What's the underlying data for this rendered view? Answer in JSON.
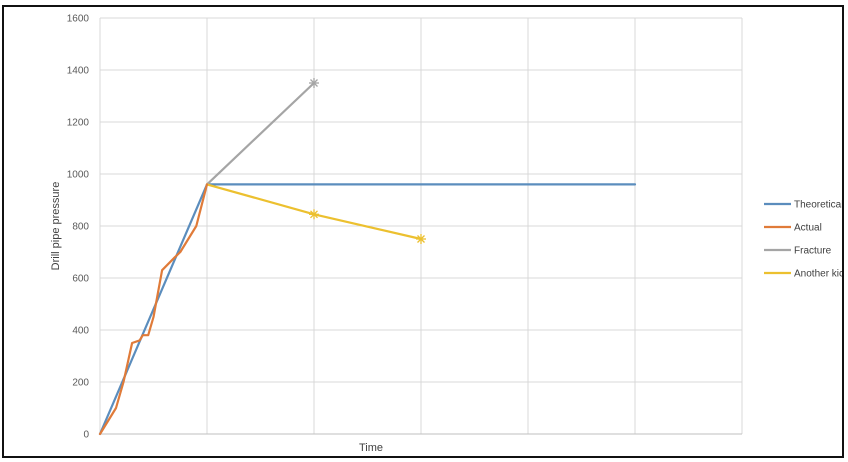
{
  "chart_data": {
    "type": "line",
    "title": "",
    "xlabel": "Time",
    "ylabel": "Drill pipe pressure",
    "ylim": [
      0,
      1600
    ],
    "yticks": [
      "0",
      "200",
      "400",
      "600",
      "800",
      "1000",
      "1200",
      "1400",
      "1600"
    ],
    "xlim": [
      0,
      6
    ],
    "x_gridlines": [
      1,
      2,
      3,
      4,
      5,
      6
    ],
    "grid": true,
    "legend_position": "right",
    "series": [
      {
        "name": "Theoretical",
        "color": "#5b8dbd",
        "points": [
          [
            0,
            0
          ],
          [
            1,
            960
          ],
          [
            5,
            960
          ]
        ]
      },
      {
        "name": "Actual",
        "color": "#e07b39",
        "points": [
          [
            0,
            0
          ],
          [
            0.15,
            100
          ],
          [
            0.22,
            200
          ],
          [
            0.3,
            350
          ],
          [
            0.37,
            360
          ],
          [
            0.4,
            380
          ],
          [
            0.45,
            380
          ],
          [
            0.5,
            450
          ],
          [
            0.58,
            630
          ],
          [
            0.7,
            680
          ],
          [
            0.75,
            700
          ],
          [
            0.9,
            800
          ],
          [
            1,
            960
          ]
        ]
      },
      {
        "name": "Fracture",
        "color": "#a5a5a5",
        "points": [
          [
            1,
            960
          ],
          [
            2,
            1350
          ]
        ],
        "end_marker": "star"
      },
      {
        "name": "Another kick",
        "color": "#ecc02f",
        "points": [
          [
            1,
            960
          ],
          [
            2,
            845
          ],
          [
            3,
            750
          ]
        ],
        "end_marker": "star"
      }
    ]
  }
}
